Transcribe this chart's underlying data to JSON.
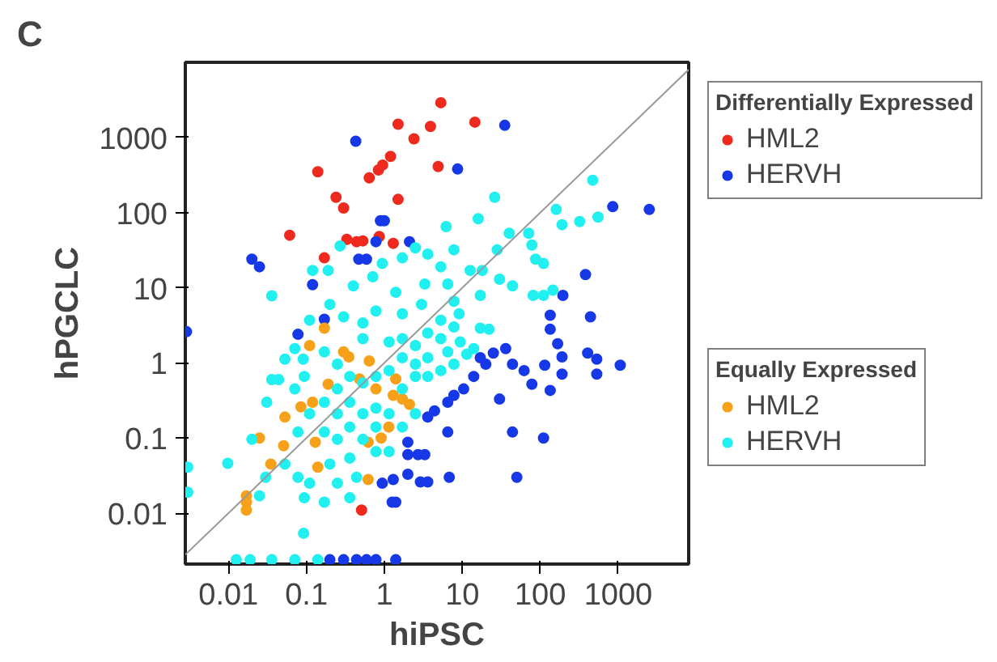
{
  "chart_data": {
    "type": "scatter",
    "title": "C",
    "xlabel": "hiPSC",
    "ylabel": "hPGCLC",
    "legend_title": [
      "Differentially Expressed",
      "Equally Expressed"
    ],
    "legend": "right",
    "marker": "circle",
    "log": "xy",
    "grid": false,
    "xlim": [
      0.0028,
      8000
    ],
    "ylim": [
      0.0021,
      10000
    ],
    "xticks": [
      0.01,
      0.1,
      1,
      10,
      100,
      1000
    ],
    "yticks": [
      0.01,
      0.1,
      1,
      10,
      100,
      1000
    ],
    "series": [
      {
        "name": "HML2",
        "color": "#ee2a1e",
        "x": [
          5.3,
          14.5,
          1.5,
          3.9,
          2.4,
          1.2,
          0.95,
          0.84,
          0.14,
          4.9,
          0.64,
          0.24,
          1.5,
          0.3,
          0.061,
          0.33,
          0.44,
          0.53,
          0.86,
          1.3,
          0.17,
          0.51
        ],
        "values": [
          2900,
          1600,
          1500,
          1400,
          960,
          560,
          430,
          370,
          350,
          410,
          290,
          160,
          150,
          115,
          50,
          44,
          41,
          42,
          48,
          39,
          25,
          0.011
        ]
      },
      {
        "name": "HERVH",
        "color": "#1638e6",
        "x": [
          0.43,
          8.7,
          35,
          0.89,
          1.0,
          2.1,
          0.78,
          0.47,
          0.59,
          0.02,
          0.025,
          0.12,
          0.078,
          0.17,
          0.0029,
          850,
          2500,
          380,
          195,
          134,
          134,
          440,
          167,
          190,
          405,
          530,
          1060,
          530,
          190,
          114,
          36,
          44,
          62,
          78,
          134,
          30,
          17,
          20,
          25,
          14,
          10.4,
          7.8,
          6.5,
          4.4,
          3.6,
          6.5,
          44,
          110,
          50,
          6.8,
          2.9,
          3.6,
          2.0,
          1.3,
          0.94,
          1.26,
          1.4,
          2.0,
          2.7,
          3.3,
          2.0,
          0.2,
          0.3,
          0.44,
          0.59,
          0.78,
          1.4
        ],
        "values": [
          890,
          380,
          1450,
          78,
          78,
          41,
          41,
          24,
          24,
          24,
          19,
          11,
          2.4,
          3.8,
          2.6,
          120,
          110,
          15,
          7.9,
          4.3,
          2.8,
          4.1,
          1.8,
          1.2,
          1.35,
          1.12,
          0.93,
          0.71,
          0.71,
          0.93,
          1.55,
          0.96,
          0.79,
          0.52,
          0.43,
          0.33,
          1.17,
          0.96,
          1.35,
          0.66,
          0.45,
          0.37,
          0.3,
          0.23,
          0.19,
          0.12,
          0.12,
          0.1,
          0.03,
          0.03,
          0.026,
          0.026,
          0.033,
          0.028,
          0.025,
          0.014,
          0.014,
          0.088,
          0.06,
          0.06,
          0.06,
          0.0024,
          0.0024,
          0.0024,
          0.0024,
          0.0024,
          0.0024
        ]
      },
      {
        "name": "HML2",
        "color": "#f7a11a",
        "x": [
          0.17,
          0.11,
          0.3,
          0.35,
          0.64,
          0.48,
          0.19,
          0.78,
          1.4,
          1.3,
          1.7,
          2.1,
          0.12,
          0.085,
          0.053,
          1.14,
          0.91,
          0.62,
          0.13,
          0.025,
          0.051,
          0.035,
          0.14,
          0.62,
          0.017,
          0.017,
          0.017
        ],
        "values": [
          2.9,
          1.7,
          1.4,
          1.2,
          1.06,
          0.61,
          0.52,
          0.45,
          0.61,
          0.37,
          0.33,
          0.28,
          0.3,
          0.26,
          0.19,
          0.14,
          0.1,
          0.088,
          0.088,
          0.1,
          0.079,
          0.045,
          0.041,
          0.028,
          0.017,
          0.014,
          0.011
        ]
      },
      {
        "name": "HERVH",
        "color": "#22f0f0",
        "x": [
          470,
          26,
          160,
          320,
          190,
          550,
          16,
          6.2,
          40,
          71,
          28,
          2.5,
          3.6,
          7.8,
          78,
          87,
          110,
          0.27,
          0.19,
          0.12,
          0.036,
          0.94,
          1.7,
          5.3,
          12.6,
          18,
          30,
          81,
          110,
          145,
          44,
          3.3,
          6.5,
          0.4,
          0.71,
          1.4,
          3.0,
          7.8,
          17,
          22,
          17,
          9.1,
          5.3,
          1.7,
          0.78,
          0.53,
          0.3,
          0.2,
          0.11,
          0.091,
          0.053,
          0.071,
          0.036,
          0.044,
          0.031,
          0.0098,
          0.003,
          0.003,
          0.02,
          0.03,
          0.025,
          0.053,
          0.078,
          0.094,
          0.17,
          0.36,
          0.092,
          0.11,
          0.25,
          0.44,
          0.17,
          0.25,
          0.36,
          0.53,
          0.25,
          0.17,
          0.36,
          0.53,
          0.78,
          1.15,
          0.36,
          0.2,
          0.78,
          1.15,
          1.7,
          2.5,
          3.6,
          5.3,
          7.8,
          11.4,
          6.5,
          3.6,
          2.5,
          1.7,
          1.15,
          0.78,
          0.53,
          0.36,
          0.25,
          2.5,
          1.15,
          0.53,
          5.3,
          9.4,
          14,
          7.8,
          3.6,
          1.7,
          0.17,
          0.25,
          0.094,
          0.071,
          0.11,
          0.078,
          1.7,
          2.5,
          0.78,
          0.0126,
          0.019,
          0.036,
          0.071,
          0.14
        ],
        "values": [
          270,
          160,
          110,
          76,
          69,
          87,
          83,
          65,
          53,
          53,
          32,
          34,
          28,
          32,
          37,
          24,
          21,
          36,
          17,
          17,
          7.8,
          21,
          25,
          19,
          17,
          17,
          13,
          7.9,
          7.9,
          9.3,
          10.6,
          11.2,
          11.2,
          10.6,
          14,
          8.7,
          6.0,
          6.6,
          7.9,
          2.8,
          2.9,
          4.5,
          3.7,
          4.5,
          4.9,
          3.4,
          4.1,
          6.0,
          3.7,
          1.12,
          1.12,
          1.55,
          0.6,
          0.6,
          0.3,
          0.046,
          0.041,
          0.019,
          0.096,
          0.03,
          0.017,
          0.045,
          0.03,
          0.016,
          0.014,
          0.016,
          0.0054,
          0.025,
          0.025,
          0.03,
          0.12,
          0.096,
          0.14,
          0.21,
          0.21,
          0.3,
          0.3,
          0.096,
          0.066,
          0.066,
          0.054,
          0.045,
          0.25,
          0.21,
          0.45,
          0.66,
          0.66,
          0.79,
          0.96,
          1.3,
          1.4,
          1.17,
          0.96,
          1.17,
          0.79,
          0.66,
          0.54,
          0.66,
          0.45,
          1.7,
          1.9,
          2.1,
          2.1,
          1.9,
          1.55,
          3.0,
          2.5,
          2.1,
          1.4,
          0.96,
          0.66,
          0.45,
          0.21,
          0.12,
          0.14,
          0.21,
          0.14,
          0.0024,
          0.0024,
          0.0024,
          0.0024,
          0.0024
        ]
      },
      {
        "type": "line",
        "marker": "none",
        "color": "#999999",
        "x": [
          0.0028,
          8000
        ],
        "values": [
          0.0028,
          8000
        ]
      }
    ]
  }
}
